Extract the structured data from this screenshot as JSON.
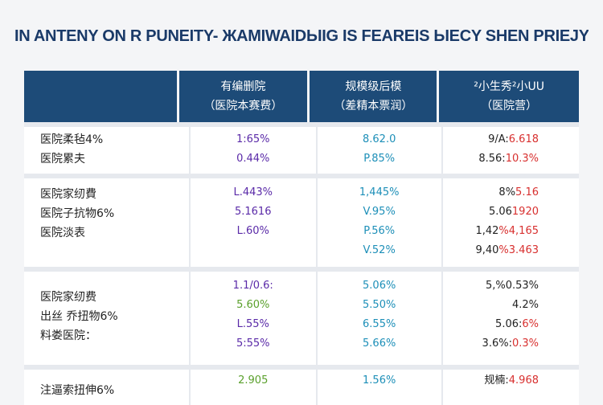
{
  "title": "IN  ANTENY ON R PUNEITY- ЖAMIWAIDЫIG IS FEARЕIS ЫECY SHEN PRIEJY",
  "header": {
    "col0": "",
    "col1": [
      "有编删院",
      "（医院本赛费）"
    ],
    "col2": [
      "规模级后模",
      "（差精本票润）"
    ],
    "col3": [
      "²小生秀²小UU",
      "（医院营）"
    ]
  },
  "rows": [
    {
      "labels": [
        "医院柔毡4%",
        "医院累夫"
      ],
      "col1": [
        "1:65%",
        "0.44%"
      ],
      "col2": [
        "8.62.0",
        "P.85%"
      ],
      "col3": [
        [
          "9/A:",
          "6.618"
        ],
        [
          "8.56:",
          "10.3%"
        ]
      ]
    },
    {
      "labels": [
        "医院家纫費",
        "医院子抗物6%",
        "医院淡表"
      ],
      "col1": [
        "L.443%",
        "5.1616",
        "L.60%"
      ],
      "col2": [
        "1,445%",
        "V.95%",
        "P.56%",
        "V.52%"
      ],
      "col3": [
        [
          "8%",
          "5.16"
        ],
        [
          "5.06",
          "1920"
        ],
        [
          "1,42",
          "%4,165"
        ],
        [
          "9,40",
          "%3.463"
        ]
      ]
    },
    {
      "labels": [
        "医院家纫费",
        "出丝 乔扭物6%",
        "料娄医院："
      ],
      "col1": [
        "1.1/0.6:",
        "5.60%",
        "L.55%",
        "5:55%"
      ],
      "col2": [
        "5.06%",
        "5.50%",
        "6.55%",
        "5.66%"
      ],
      "col3": [
        [
          "5,%0.53%",
          ""
        ],
        [
          "4.2%",
          ""
        ],
        [
          "5.06:",
          "6%"
        ],
        [
          "3.6%:",
          "0.3%"
        ]
      ]
    },
    {
      "labels": [
        "注逼索扭伸6%"
      ],
      "col1": [
        "2.905"
      ],
      "col2": [
        "1.56%"
      ],
      "col3": [
        [
          "规楠:",
          "4.968"
        ]
      ]
    }
  ]
}
